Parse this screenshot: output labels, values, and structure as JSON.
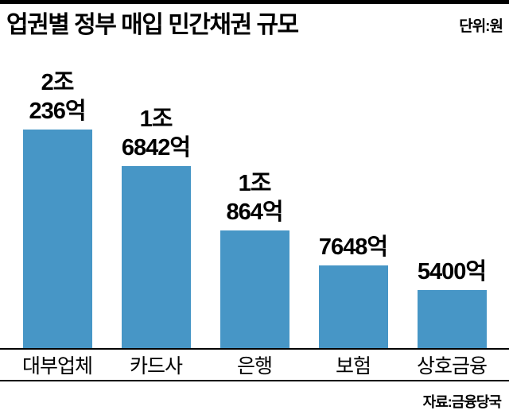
{
  "header": {
    "title": "업권별 정부 매입 민간채권 규모",
    "unit": "단위:원"
  },
  "footer": {
    "source": "자료:금융당국"
  },
  "chart_data": {
    "type": "bar",
    "title": "업권별 정부 매입 민간채권 규모",
    "unit_label": "단위:원",
    "source_label": "자료:금융당국",
    "categories": [
      "대부업체",
      "카드사",
      "은행",
      "보험",
      "상호금융"
    ],
    "values": [
      20236,
      16842,
      10864,
      7648,
      5400
    ],
    "value_unit": "억 원",
    "value_labels": [
      [
        "2조",
        "236억"
      ],
      [
        "1조",
        "6842억"
      ],
      [
        "1조",
        "864억"
      ],
      [
        "7648억"
      ],
      [
        "5400억"
      ]
    ],
    "bar_color": "#4796c6",
    "ylim": [
      0,
      20236
    ],
    "grid": false,
    "legend_position": "none"
  }
}
